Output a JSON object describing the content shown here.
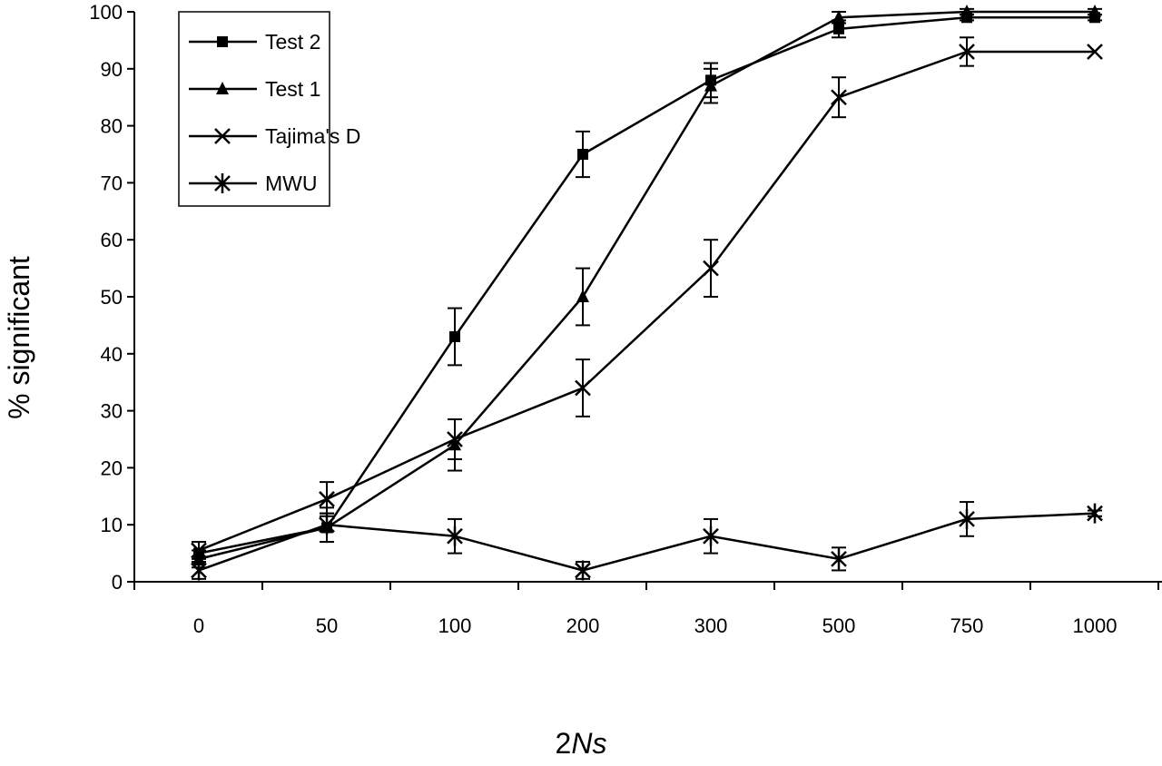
{
  "chart_data": {
    "type": "line",
    "title": "",
    "xlabel_prefix": "2",
    "xlabel_italic": "Ns",
    "ylabel": "% significant",
    "categories": [
      "0",
      "50",
      "100",
      "200",
      "300",
      "500",
      "750",
      "1000"
    ],
    "ylim": [
      0,
      100
    ],
    "yticks": [
      0,
      10,
      20,
      30,
      40,
      50,
      60,
      70,
      80,
      90,
      100
    ],
    "grid": false,
    "legend_placement": "top-left",
    "series": [
      {
        "name": "Test 2",
        "marker": "square",
        "values": [
          5,
          9.5,
          43,
          75,
          88,
          97,
          99,
          99
        ],
        "error": [
          2,
          2.5,
          5,
          4,
          3,
          1.5,
          0.5,
          0.5
        ]
      },
      {
        "name": "Test 1",
        "marker": "triangle",
        "values": [
          4,
          9.5,
          24,
          50,
          87,
          99,
          100,
          100
        ],
        "error": [
          1.5,
          2.5,
          4.5,
          5,
          3,
          1,
          0.5,
          0.5
        ]
      },
      {
        "name": "Tajima's D",
        "marker": "x",
        "values": [
          5.5,
          14.5,
          25,
          34,
          55,
          85,
          93,
          93
        ],
        "error": [
          1.5,
          3,
          3.5,
          5,
          5,
          3.5,
          2.5,
          0
        ]
      },
      {
        "name": "MWU",
        "marker": "asterisk",
        "values": [
          2,
          10,
          8,
          2,
          8,
          4,
          11,
          12
        ],
        "error": [
          1.5,
          3,
          3,
          1.5,
          3,
          2,
          3,
          0.5
        ]
      }
    ],
    "colors": {
      "line": "#000000",
      "background": "#ffffff"
    }
  }
}
